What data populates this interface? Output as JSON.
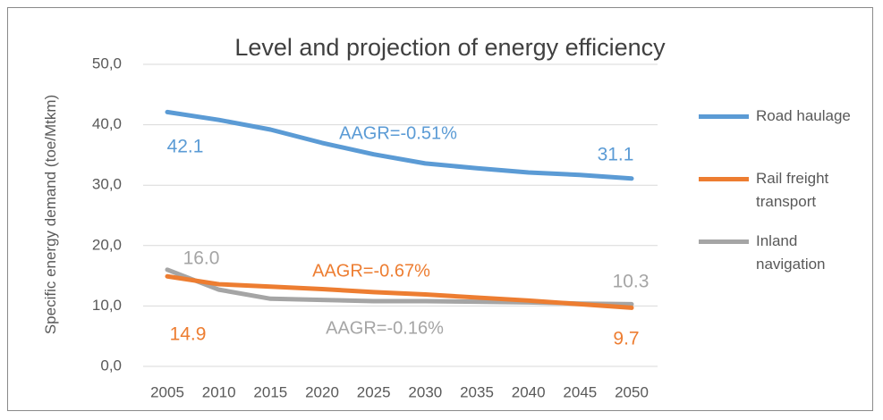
{
  "chart_data": {
    "type": "line",
    "title": "Level and projection of energy efficiency",
    "y_label": "Specific energy demand (toe/Mtkm)",
    "x": [
      2005,
      2010,
      2015,
      2020,
      2025,
      2030,
      2035,
      2040,
      2045,
      2050
    ],
    "xlim": [
      2005,
      2050
    ],
    "xticks": [
      2005,
      2010,
      2015,
      2020,
      2025,
      2030,
      2035,
      2040,
      2045,
      2050
    ],
    "ylim": [
      0,
      50
    ],
    "yticks": [
      {
        "value": 0,
        "label": "0,0"
      },
      {
        "value": 10,
        "label": "10,0"
      },
      {
        "value": 20,
        "label": "20,0"
      },
      {
        "value": 30,
        "label": "30,0"
      },
      {
        "value": 40,
        "label": "40,0"
      },
      {
        "value": 50,
        "label": "50,0"
      }
    ],
    "grid": true,
    "legend": "right",
    "series": [
      {
        "name": "Road haulage",
        "color": "#5b9bd5",
        "values": [
          42.1,
          40.8,
          39.2,
          37.0,
          35.1,
          33.6,
          32.8,
          32.1,
          31.7,
          31.1
        ],
        "value_labels": [
          "42.1",
          null,
          null,
          null,
          null,
          null,
          null,
          null,
          null,
          "31.1"
        ],
        "annotation": "AAGR=-0.51%"
      },
      {
        "name": "Rail freight transport",
        "color": "#ed7d31",
        "values": [
          14.9,
          13.6,
          13.2,
          12.8,
          12.3,
          11.9,
          11.4,
          10.9,
          10.3,
          9.7
        ],
        "value_labels": [
          "14.9",
          null,
          null,
          null,
          null,
          null,
          null,
          null,
          null,
          "9.7"
        ],
        "annotation": "AAGR=-0.67%"
      },
      {
        "name": "Inland navigation",
        "color": "#a5a5a5",
        "values": [
          16.0,
          12.7,
          11.2,
          11.0,
          10.8,
          10.8,
          10.7,
          10.6,
          10.4,
          10.3
        ],
        "value_labels": [
          "16.0",
          null,
          null,
          null,
          null,
          null,
          null,
          null,
          null,
          "10.3"
        ],
        "annotation": "AAGR=-0.16%"
      }
    ]
  }
}
